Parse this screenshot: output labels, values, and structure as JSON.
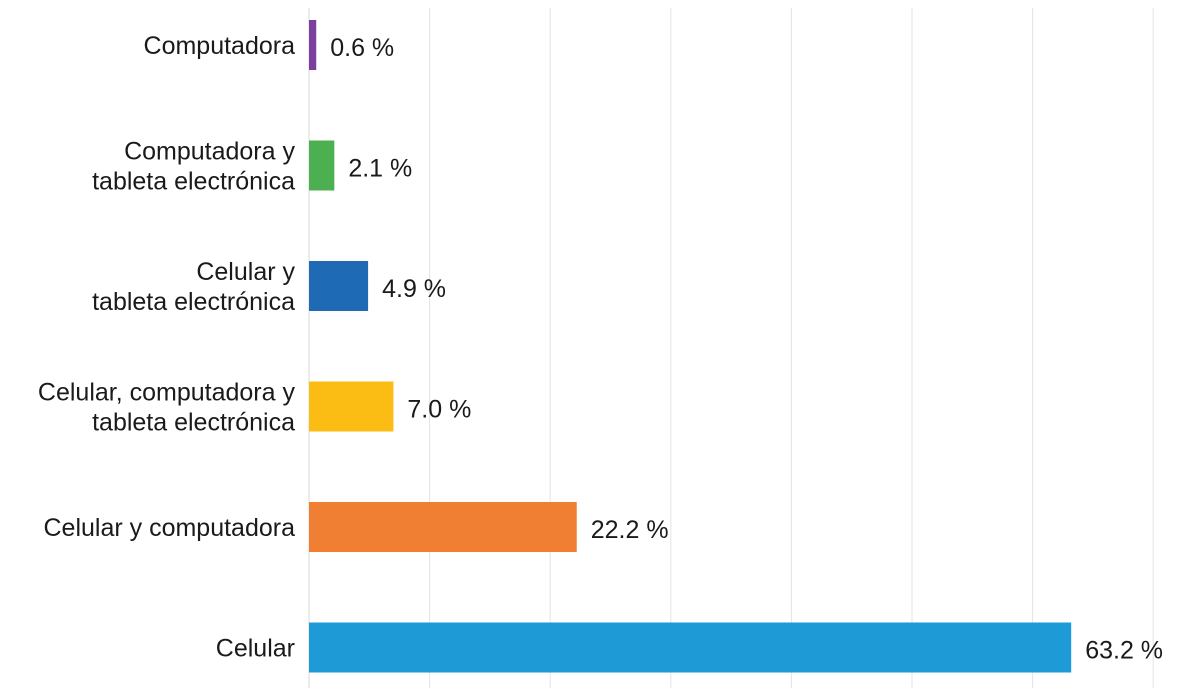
{
  "chart_data": {
    "type": "bar",
    "orientation": "horizontal",
    "categories": [
      [
        "Computadora"
      ],
      [
        "Computadora y",
        "tableta electrónica"
      ],
      [
        "Celular y",
        "tableta electrónica"
      ],
      [
        "Celular, computadora y",
        "tableta electrónica"
      ],
      [
        "Celular y computadora"
      ],
      [
        "Celular"
      ]
    ],
    "values": [
      0.6,
      2.1,
      4.9,
      7.0,
      22.2,
      63.2
    ],
    "value_labels": [
      "0.6 %",
      "2.1 %",
      "4.9 %",
      "7.0 %",
      "22.2 %",
      "63.2 %"
    ],
    "colors": [
      "#7b3fa0",
      "#4caf50",
      "#1e6ab4",
      "#fbbc14",
      "#f07f34",
      "#1e9ad6"
    ],
    "xlim": [
      0,
      70
    ],
    "grid": true,
    "title": "",
    "xlabel": "",
    "ylabel": ""
  }
}
